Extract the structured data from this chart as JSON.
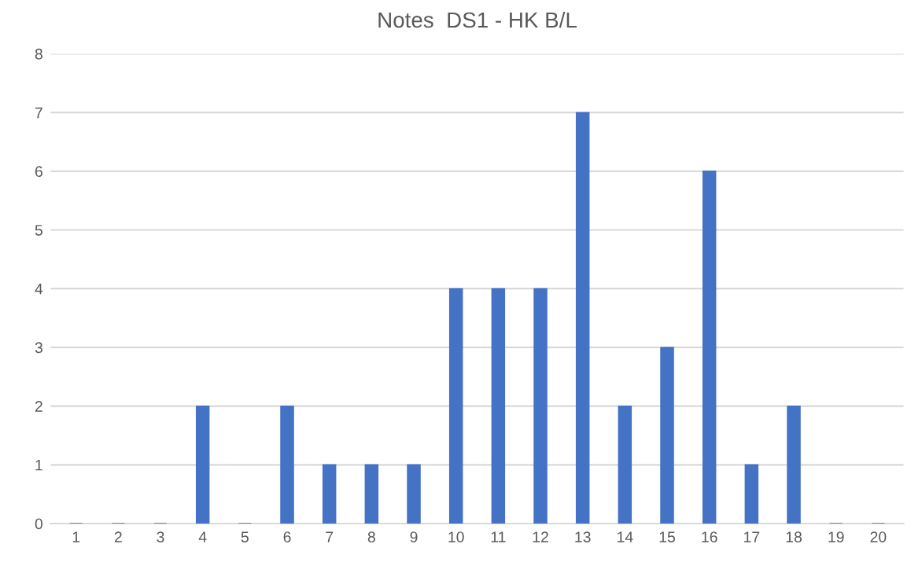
{
  "chart_data": {
    "type": "bar",
    "title": "Notes  DS1 - HK B/L",
    "categories": [
      "1",
      "2",
      "3",
      "4",
      "5",
      "6",
      "7",
      "8",
      "9",
      "10",
      "11",
      "12",
      "13",
      "14",
      "15",
      "16",
      "17",
      "18",
      "19",
      "20"
    ],
    "values": [
      0,
      0,
      0,
      2,
      0,
      2,
      1,
      1,
      1,
      4,
      4,
      4,
      7,
      2,
      3,
      6,
      1,
      2,
      0,
      0
    ],
    "color": "#4472c4",
    "ylim": [
      0,
      8
    ],
    "yticks": [
      0,
      1,
      2,
      3,
      4,
      5,
      6,
      7,
      8
    ],
    "grid": "y"
  }
}
